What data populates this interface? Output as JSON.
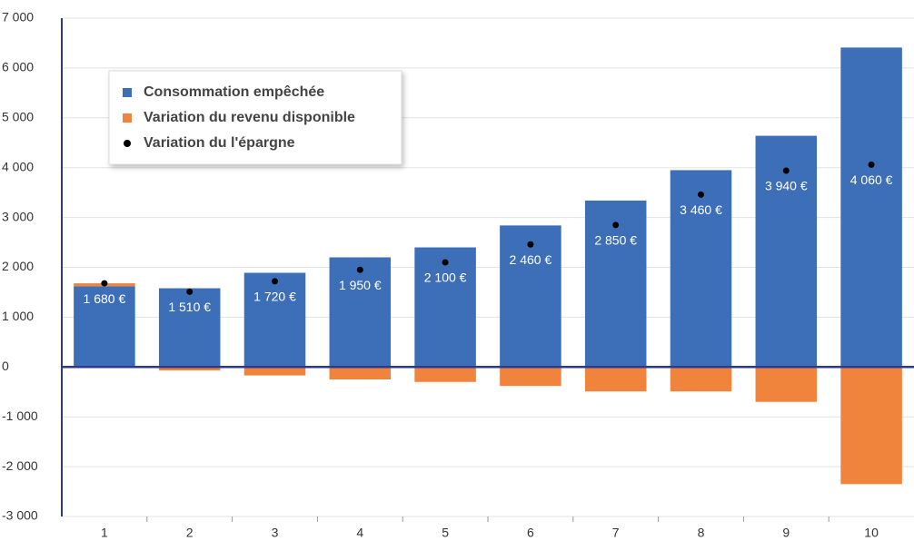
{
  "chart_data": {
    "type": "bar",
    "categories": [
      "1",
      "2",
      "3",
      "4",
      "5",
      "6",
      "7",
      "8",
      "9",
      "10"
    ],
    "series": [
      {
        "name": "Consommation empêchée",
        "color": "#3d6fb8",
        "values": [
          1620,
          1580,
          1890,
          2200,
          2400,
          2840,
          3340,
          3950,
          4640,
          6410
        ]
      },
      {
        "name": "Variation du revenu disponible",
        "color": "#f0843c",
        "values": [
          60,
          -70,
          -170,
          -250,
          -300,
          -380,
          -490,
          -490,
          -700,
          -2350
        ]
      },
      {
        "name": "Variation du l'épargne",
        "color": "#000000",
        "type": "scatter",
        "values": [
          1680,
          1510,
          1720,
          1950,
          2100,
          2460,
          2850,
          3460,
          3940,
          4060
        ],
        "value_labels": [
          "1 680 €",
          "1 510 €",
          "1 720 €",
          "1 950 €",
          "2 100 €",
          "2 460 €",
          "2 850 €",
          "3 460 €",
          "3 940 €",
          "4 060 €"
        ]
      }
    ],
    "ylim": [
      -3000,
      7000
    ],
    "yticks": [
      {
        "value": -3000,
        "label": "-3 000"
      },
      {
        "value": -2000,
        "label": "-2 000"
      },
      {
        "value": -1000,
        "label": "-1 000"
      },
      0,
      {
        "value": 1000,
        "label": "1 000"
      },
      {
        "value": 2000,
        "label": "2 000"
      },
      {
        "value": 3000,
        "label": "3 000"
      },
      {
        "value": 4000,
        "label": "4 000"
      },
      {
        "value": 5000,
        "label": "5 000"
      },
      {
        "value": 6000,
        "label": "6 000"
      },
      {
        "value": 7000,
        "label": "7 000"
      }
    ],
    "grid": true,
    "legend": "upper left"
  }
}
